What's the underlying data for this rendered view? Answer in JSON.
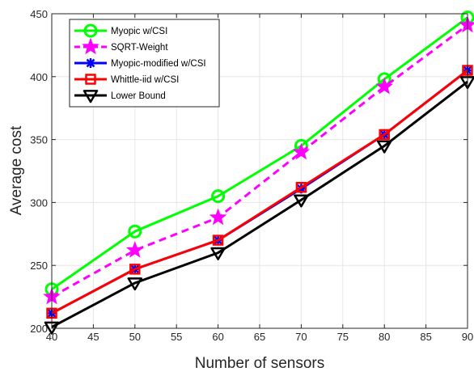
{
  "chart_data": {
    "type": "line",
    "title": "",
    "xlabel": "Number of sensors",
    "ylabel": "Average cost",
    "x": [
      40,
      50,
      60,
      70,
      80,
      90
    ],
    "xlim": [
      40,
      90
    ],
    "ylim": [
      200,
      450
    ],
    "xticks": [
      40,
      45,
      50,
      55,
      60,
      65,
      70,
      75,
      80,
      85,
      90
    ],
    "yticks": [
      200,
      250,
      300,
      350,
      400,
      450
    ],
    "grid": true,
    "legend_position": "top-left",
    "series": [
      {
        "name": "Myopic w/CSI",
        "values": [
          231,
          277,
          305,
          345,
          398,
          447
        ],
        "color": "#00ff00",
        "marker": "circle",
        "dash": "solid"
      },
      {
        "name": "SQRT-Weight",
        "values": [
          225,
          262,
          288,
          340,
          392,
          441
        ],
        "color": "#ff00ff",
        "marker": "star",
        "dash": "dashed"
      },
      {
        "name": "Myopic-modified w/CSI",
        "values": [
          212,
          247,
          270,
          311,
          354,
          405
        ],
        "color": "#0000ff",
        "marker": "asterisk",
        "dash": "solid"
      },
      {
        "name": "Whittle-iid w/CSI",
        "values": [
          212,
          247,
          270,
          312,
          354,
          405
        ],
        "color": "#ff0000",
        "marker": "square",
        "dash": "solid"
      },
      {
        "name": "Lower Bound",
        "values": [
          201,
          236,
          260,
          302,
          345,
          396
        ],
        "color": "#000000",
        "marker": "triangle-down",
        "dash": "solid"
      }
    ]
  }
}
